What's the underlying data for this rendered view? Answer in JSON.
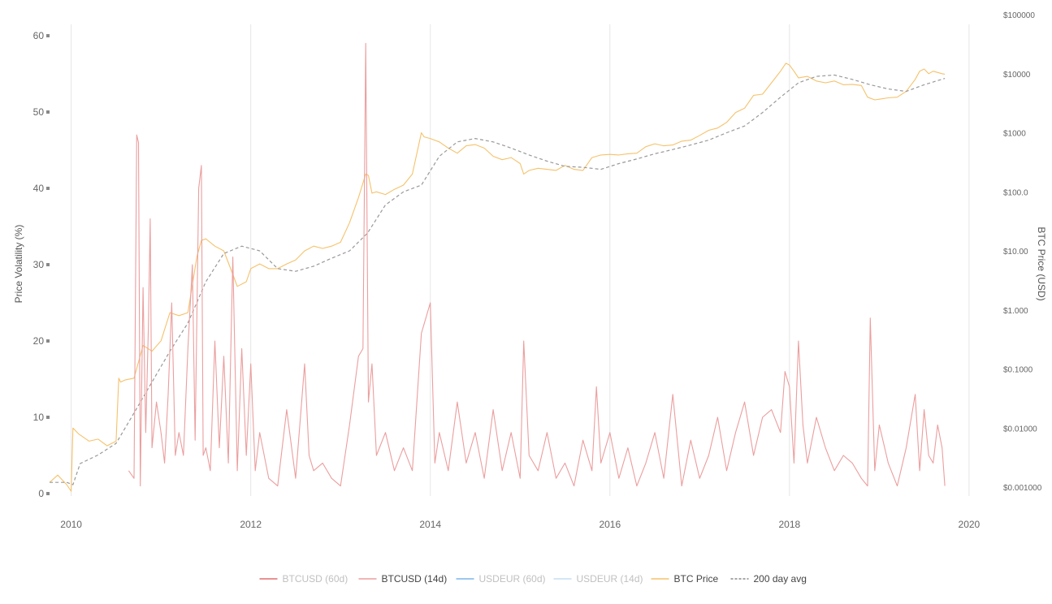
{
  "chart_data": {
    "type": "line",
    "ylabel_left": "Price Volatility (%)",
    "ylabel_right": "BTC Price (USD)",
    "xlim": [
      2009.75,
      2020.2
    ],
    "ylim_left": [
      0,
      60
    ],
    "ylim_right_log": [
      0.001,
      100000
    ],
    "grid": "vertical",
    "x_ticks": [
      "2010",
      "2012",
      "2014",
      "2016",
      "2018",
      "2020"
    ],
    "x_tick_values": [
      2010,
      2012,
      2014,
      2016,
      2018,
      2020
    ],
    "y_left_ticks": [
      "0",
      "10",
      "20",
      "30",
      "40",
      "50",
      "60"
    ],
    "y_left_tick_values": [
      0,
      10,
      20,
      30,
      40,
      50,
      60
    ],
    "y_right_ticks": [
      "$0.001000",
      "$0.01000",
      "$0.1000",
      "$1.000",
      "$10.00",
      "$100.0",
      "$1000",
      "$10000",
      "$100000"
    ],
    "y_right_tick_values": [
      0.001,
      0.01,
      0.1,
      1,
      10,
      100,
      1000,
      10000,
      100000
    ],
    "legend_position": "bottom-center",
    "series": [
      {
        "name": "BTCUSD (60d)",
        "axis": "left",
        "color": "#e8a0a0",
        "visible": false,
        "dash": "solid",
        "x": [],
        "values": []
      },
      {
        "name": "BTCUSD (14d)",
        "axis": "left",
        "color": "#eb9e9e",
        "visible": true,
        "dash": "solid",
        "x": [
          2010.64,
          2010.7,
          2010.73,
          2010.75,
          2010.77,
          2010.8,
          2010.83,
          2010.86,
          2010.88,
          2010.9,
          2010.95,
          2011.0,
          2011.04,
          2011.08,
          2011.12,
          2011.16,
          2011.2,
          2011.25,
          2011.3,
          2011.35,
          2011.38,
          2011.42,
          2011.45,
          2011.47,
          2011.5,
          2011.55,
          2011.6,
          2011.65,
          2011.7,
          2011.75,
          2011.8,
          2011.85,
          2011.9,
          2011.95,
          2012.0,
          2012.05,
          2012.1,
          2012.2,
          2012.3,
          2012.4,
          2012.5,
          2012.6,
          2012.65,
          2012.7,
          2012.8,
          2012.9,
          2013.0,
          2013.1,
          2013.2,
          2013.25,
          2013.28,
          2013.31,
          2013.35,
          2013.4,
          2013.5,
          2013.6,
          2013.7,
          2013.8,
          2013.9,
          2013.95,
          2014.0,
          2014.05,
          2014.1,
          2014.2,
          2014.3,
          2014.4,
          2014.5,
          2014.6,
          2014.7,
          2014.8,
          2014.9,
          2015.0,
          2015.04,
          2015.1,
          2015.2,
          2015.3,
          2015.4,
          2015.5,
          2015.6,
          2015.7,
          2015.8,
          2015.85,
          2015.9,
          2016.0,
          2016.1,
          2016.2,
          2016.3,
          2016.4,
          2016.5,
          2016.6,
          2016.7,
          2016.8,
          2016.9,
          2017.0,
          2017.1,
          2017.2,
          2017.3,
          2017.4,
          2017.5,
          2017.6,
          2017.7,
          2017.8,
          2017.9,
          2017.95,
          2018.0,
          2018.05,
          2018.1,
          2018.15,
          2018.2,
          2018.3,
          2018.4,
          2018.5,
          2018.6,
          2018.7,
          2018.8,
          2018.87,
          2018.9,
          2018.95,
          2019.0,
          2019.1,
          2019.2,
          2019.3,
          2019.4,
          2019.45,
          2019.5,
          2019.55,
          2019.6,
          2019.65,
          2019.7,
          2019.73
        ],
        "values": [
          3,
          2,
          47,
          46,
          1,
          27,
          8,
          22,
          36,
          6,
          12,
          8,
          4,
          13,
          25,
          5,
          8,
          5,
          19,
          30,
          7,
          40,
          43,
          5,
          6,
          3,
          20,
          6,
          18,
          4,
          31,
          3,
          19,
          5,
          17,
          3,
          8,
          2,
          1,
          11,
          2,
          17,
          5,
          3,
          4,
          2,
          1,
          9,
          18,
          19,
          59,
          12,
          17,
          5,
          8,
          3,
          6,
          3,
          21,
          23,
          25,
          4,
          8,
          3,
          12,
          4,
          8,
          2,
          11,
          3,
          8,
          2,
          20,
          5,
          3,
          8,
          2,
          4,
          1,
          7,
          3,
          14,
          4,
          8,
          2,
          6,
          1,
          4,
          8,
          2,
          13,
          1,
          7,
          2,
          5,
          10,
          3,
          8,
          12,
          5,
          10,
          11,
          8,
          16,
          14,
          4,
          20,
          9,
          4,
          10,
          6,
          3,
          5,
          4,
          2,
          1,
          23,
          3,
          9,
          4,
          1,
          6,
          13,
          3,
          11,
          5,
          4,
          9,
          6,
          1
        ]
      },
      {
        "name": "USDEUR (60d)",
        "axis": "left",
        "color": "#7cb5ec",
        "visible": false,
        "dash": "solid",
        "x": [],
        "values": []
      },
      {
        "name": "USDEUR (14d)",
        "axis": "left",
        "color": "#c5ddf4",
        "visible": false,
        "dash": "solid",
        "x": [],
        "values": []
      },
      {
        "name": "BTC Price",
        "axis": "right",
        "color": "#f5c26b",
        "visible": true,
        "dash": "solid",
        "x": [
          2009.76,
          2009.85,
          2009.95,
          2010.0,
          2010.02,
          2010.08,
          2010.2,
          2010.3,
          2010.4,
          2010.5,
          2010.53,
          2010.55,
          2010.6,
          2010.7,
          2010.8,
          2010.9,
          2011.0,
          2011.1,
          2011.2,
          2011.3,
          2011.4,
          2011.45,
          2011.5,
          2011.6,
          2011.7,
          2011.8,
          2011.85,
          2011.95,
          2012.0,
          2012.1,
          2012.2,
          2012.3,
          2012.4,
          2012.5,
          2012.6,
          2012.7,
          2012.8,
          2012.9,
          2013.0,
          2013.1,
          2013.2,
          2013.28,
          2013.31,
          2013.35,
          2013.4,
          2013.5,
          2013.6,
          2013.7,
          2013.8,
          2013.9,
          2013.93,
          2014.0,
          2014.1,
          2014.2,
          2014.3,
          2014.4,
          2014.5,
          2014.6,
          2014.7,
          2014.8,
          2014.9,
          2015.0,
          2015.04,
          2015.1,
          2015.2,
          2015.3,
          2015.4,
          2015.5,
          2015.6,
          2015.7,
          2015.8,
          2015.85,
          2015.9,
          2016.0,
          2016.1,
          2016.2,
          2016.3,
          2016.4,
          2016.5,
          2016.6,
          2016.7,
          2016.8,
          2016.9,
          2017.0,
          2017.1,
          2017.2,
          2017.3,
          2017.4,
          2017.5,
          2017.6,
          2017.7,
          2017.8,
          2017.9,
          2017.96,
          2018.0,
          2018.05,
          2018.1,
          2018.2,
          2018.3,
          2018.4,
          2018.5,
          2018.6,
          2018.7,
          2018.8,
          2018.87,
          2018.95,
          2019.0,
          2019.1,
          2019.2,
          2019.3,
          2019.4,
          2019.45,
          2019.5,
          2019.55,
          2019.6,
          2019.7,
          2019.73
        ],
        "values": [
          0.0012,
          0.0016,
          0.0011,
          0.00085,
          0.01,
          0.008,
          0.006,
          0.0065,
          0.005,
          0.006,
          0.07,
          0.06,
          0.065,
          0.07,
          0.25,
          0.2,
          0.3,
          0.9,
          0.8,
          0.9,
          8,
          15,
          16,
          12,
          10,
          4,
          2.5,
          3,
          5,
          6,
          5,
          5,
          6,
          7,
          10,
          12,
          11,
          12,
          14,
          30,
          80,
          200,
          190,
          95,
          100,
          90,
          110,
          130,
          200,
          1000,
          850,
          800,
          700,
          550,
          450,
          600,
          630,
          550,
          400,
          350,
          380,
          300,
          200,
          230,
          250,
          240,
          230,
          280,
          240,
          230,
          380,
          400,
          420,
          430,
          420,
          440,
          450,
          580,
          650,
          600,
          620,
          720,
          750,
          900,
          1100,
          1200,
          1500,
          2200,
          2600,
          4300,
          4500,
          7000,
          11000,
          15000,
          14000,
          11000,
          8500,
          9000,
          7500,
          7000,
          7500,
          6500,
          6600,
          6300,
          4000,
          3600,
          3700,
          3900,
          4000,
          5000,
          8000,
          11000,
          12000,
          10000,
          11000,
          10000,
          9800
        ]
      },
      {
        "name": "200 day avg",
        "axis": "right",
        "color": "#999999",
        "visible": true,
        "dash": "dashed",
        "x": [
          2009.76,
          2009.95,
          2010.02,
          2010.1,
          2010.3,
          2010.5,
          2010.7,
          2010.9,
          2011.1,
          2011.3,
          2011.5,
          2011.7,
          2011.9,
          2012.1,
          2012.3,
          2012.5,
          2012.7,
          2012.9,
          2013.1,
          2013.3,
          2013.5,
          2013.7,
          2013.9,
          2014.1,
          2014.3,
          2014.5,
          2014.7,
          2014.9,
          2015.1,
          2015.3,
          2015.5,
          2015.7,
          2015.9,
          2016.1,
          2016.3,
          2016.5,
          2016.7,
          2016.9,
          2017.1,
          2017.3,
          2017.5,
          2017.7,
          2017.9,
          2018.1,
          2018.3,
          2018.5,
          2018.7,
          2018.9,
          2019.1,
          2019.3,
          2019.5,
          2019.73
        ],
        "values": [
          0.0012,
          0.0012,
          0.0011,
          0.0025,
          0.0035,
          0.0055,
          0.018,
          0.06,
          0.2,
          0.6,
          3,
          9,
          12,
          10,
          5,
          4.5,
          5.5,
          7.5,
          10,
          20,
          60,
          100,
          130,
          400,
          700,
          800,
          700,
          550,
          420,
          330,
          270,
          260,
          240,
          300,
          360,
          440,
          520,
          620,
          750,
          1000,
          1300,
          2200,
          4000,
          7000,
          9000,
          9500,
          8000,
          6500,
          5500,
          5000,
          6500,
          8300
        ]
      }
    ]
  },
  "legend": {
    "items": [
      {
        "label": "BTCUSD (60d)",
        "color": "#e06e6e",
        "text_color": "#c0c0c0",
        "style": "solid"
      },
      {
        "label": "BTCUSD (14d)",
        "color": "#eb9e9e",
        "text_color": "#444444",
        "style": "solid"
      },
      {
        "label": "USDEUR (60d)",
        "color": "#7cb5ec",
        "text_color": "#c0c0c0",
        "style": "solid"
      },
      {
        "label": "USDEUR (14d)",
        "color": "#c5ddf4",
        "text_color": "#c0c0c0",
        "style": "solid"
      },
      {
        "label": "BTC Price",
        "color": "#f5c26b",
        "text_color": "#444444",
        "style": "solid"
      },
      {
        "label": "200 day avg",
        "color": "#888888",
        "text_color": "#444444",
        "style": "dashed"
      }
    ]
  }
}
